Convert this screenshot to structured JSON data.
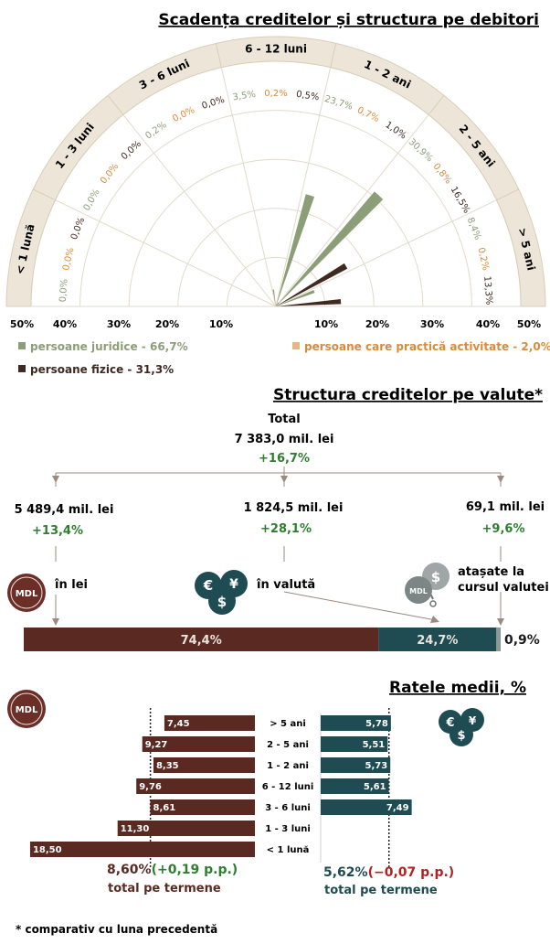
{
  "colors": {
    "juridice": "#8c9e78",
    "fizice": "#3f2a22",
    "activitate": "#d98b3a",
    "mdl_bar": "#5a2a22",
    "fx_bar": "#1f4b52",
    "atasate_bar": "#8a9a92",
    "beige": "#ede6d8",
    "positive": "#2f7d2f",
    "negative": "#b22222"
  },
  "section1": {
    "title": "Scadența creditelor și structura pe debitori",
    "legend": {
      "juridice": "persoane juridice - 66,7%",
      "fizice": "persoane fizice - 31,3%",
      "activitate": "persoane care practică activitate - 2,0%"
    },
    "scale_left": [
      "50%",
      "40%",
      "30%",
      "20%",
      "10%"
    ],
    "scale_right": [
      "10%",
      "20%",
      "30%",
      "40%",
      "50%"
    ]
  },
  "section2": {
    "title": "Structura creditelor pe valute*",
    "total_label": "Total",
    "total_value": "7 383,0 mil. lei",
    "total_change": "+16,7%",
    "lei": {
      "value": "5 489,4 mil. lei",
      "change": "+13,4%",
      "label": "în lei",
      "pct": "74,4%",
      "share": 74.4
    },
    "valuta": {
      "value": "1 824,5 mil. lei",
      "change": "+28,1%",
      "label": "în valută",
      "pct": "24,7%",
      "share": 24.7
    },
    "atasate": {
      "value": "69,1 mil. lei",
      "change": "+9,6%",
      "label1": "atașate la",
      "label2": "cursul valutei",
      "pct": "0,9%",
      "share": 0.9
    },
    "mdl_badge": "MDL",
    "mdl_small": "MDL"
  },
  "section3": {
    "title": "Ratele medii, %",
    "mdl_badge": "MDL",
    "mdl_total": "8,60%",
    "mdl_change": "(+0,19 p.p.)",
    "fx_total": "5,62%",
    "fx_change": "(−0,07 p.p.)",
    "total_label": "total pe termene"
  },
  "footnote": "* comparativ cu luna precedentă",
  "chart_data": [
    {
      "type": "radial-bar",
      "title": "Scadența creditelor și structura pe debitori",
      "categories": [
        "< 1 lună",
        "1 - 3 luni",
        "3 - 6 luni",
        "6 - 12 luni",
        "1 - 2 ani",
        "2 - 5 ani",
        "> 5 ani"
      ],
      "series": [
        {
          "name": "persoane juridice - 66,7%",
          "values": [
            0.0,
            0.0,
            0.2,
            3.5,
            23.7,
            30.9,
            8.4
          ],
          "labels": [
            "0,0%",
            "0,0%",
            "0,2%",
            "3,5%",
            "23,7%",
            "30,9%",
            "8,4%"
          ]
        },
        {
          "name": "persoane care practică activitate - 2,0%",
          "values": [
            0.0,
            0.0,
            0.0,
            0.2,
            0.7,
            0.8,
            0.2
          ],
          "labels": [
            "0,0%",
            "0,0%",
            "0,0%",
            "0,2%",
            "0,7%",
            "0,8%",
            "0,2%"
          ]
        },
        {
          "name": "persoane fizice - 31,3%",
          "values": [
            0.0,
            0.0,
            0.0,
            0.5,
            1.0,
            16.5,
            13.3
          ],
          "labels": [
            "0,0%",
            "0,0%",
            "0,0%",
            "0,5%",
            "1,0%",
            "16,5%",
            "13,3%"
          ]
        }
      ],
      "rlim": [
        0,
        50
      ]
    },
    {
      "type": "bar",
      "title": "Structura creditelor pe valute*",
      "categories": [
        "în lei",
        "în valută",
        "atașate la cursul valutei"
      ],
      "values": [
        74.4,
        24.7,
        0.9
      ],
      "labels": [
        "74,4%",
        "24,7%",
        "0,9%"
      ]
    },
    {
      "type": "bar",
      "title": "Ratele medii, %",
      "categories": [
        "> 5 ani",
        "2 - 5 ani",
        "1 - 2 ani",
        "6 - 12 luni",
        "3 - 6 luni",
        "1 - 3 luni",
        "< 1 lună"
      ],
      "series": [
        {
          "name": "MDL",
          "values": [
            7.45,
            9.27,
            8.35,
            9.76,
            8.61,
            11.3,
            18.5
          ],
          "labels": [
            "7,45",
            "9,27",
            "8,35",
            "9,76",
            "8,61",
            "11,30",
            "18,50"
          ]
        },
        {
          "name": "valută",
          "values": [
            5.78,
            5.51,
            5.73,
            5.61,
            7.49,
            null,
            null
          ],
          "labels": [
            "5,78",
            "5,51",
            "5,73",
            "5,61",
            "7,49",
            "",
            ""
          ]
        }
      ],
      "reference_lines": {
        "MDL": 8.6,
        "valută": 5.62
      }
    }
  ]
}
